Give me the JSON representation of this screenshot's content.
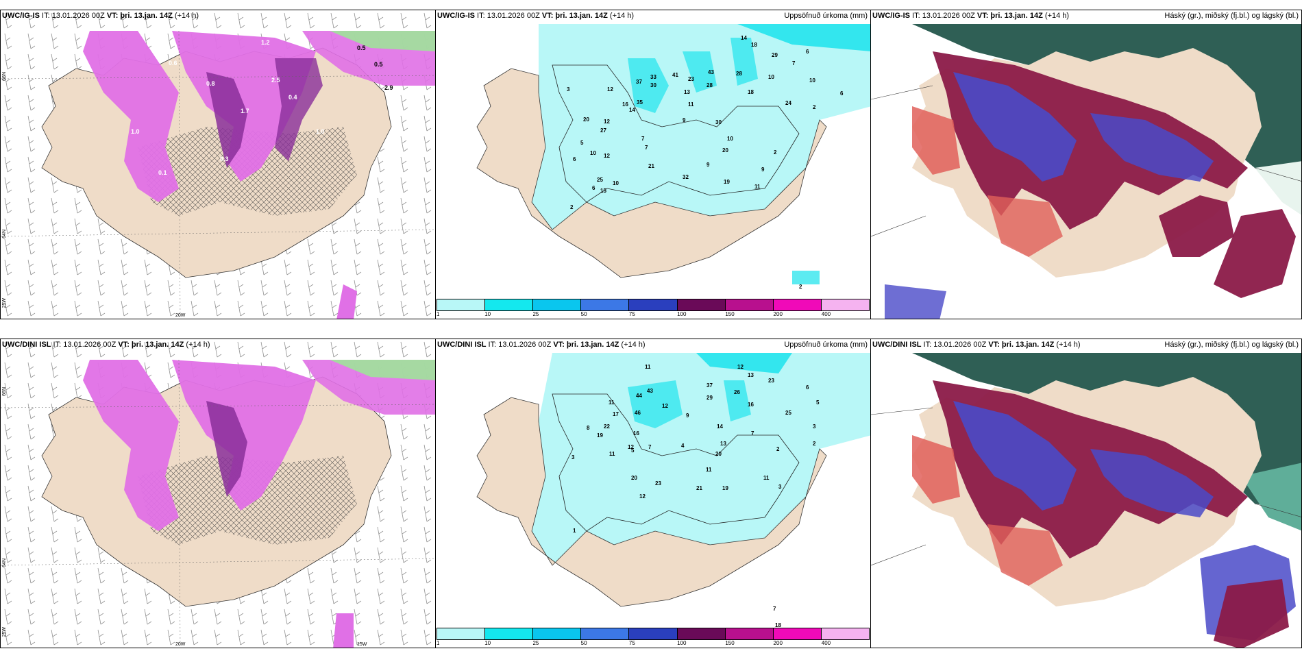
{
  "panels": [
    {
      "id": "top-left",
      "title_bold": "UWC/IG-IS",
      "title_rest": " IT: 13.01.2026 00Z ",
      "vt_bold": "VT: þri. 13.jan. 14Z",
      "lead": " (+14 h)",
      "right": "",
      "axis": {
        "lat66": "66N",
        "lat64": "64N",
        "lon25": "25W",
        "lon20": "20W"
      }
    },
    {
      "id": "top-mid",
      "title_bold": "UWC/IG-IS",
      "title_rest": " IT: 13.01.2026 00Z ",
      "vt_bold": "VT: þri. 13.jan. 14Z",
      "lead": " (+14 h)",
      "right": "Uppsöfnuð úrkoma (mm)",
      "colorbar": [
        "1",
        "10",
        "25",
        "50",
        "75",
        "100",
        "150",
        "200",
        "400"
      ]
    },
    {
      "id": "top-right",
      "title_bold": "UWC/IG-IS",
      "title_rest": " IT: 13.01.2026 00Z ",
      "vt_bold": "VT: þri. 13.jan. 14Z",
      "lead": " (+14 h)",
      "right": "Háský (gr.), miðský (fj.bl.) og lágský (bl.)"
    },
    {
      "id": "bottom-left",
      "title_bold": "UWC/DINI ISL",
      "title_rest": " IT: 13.01.2026 00Z ",
      "vt_bold": "VT: þri. 13.jan. 14Z",
      "lead": " (+14 h)",
      "right": "",
      "axis": {
        "lat66": "66N",
        "lat64": "64N",
        "lon25": "25W",
        "lon20": "20W",
        "lon15": "15W"
      }
    },
    {
      "id": "bottom-mid",
      "title_bold": "UWC/DINI ISL",
      "title_rest": " IT: 13.01.2026 00Z ",
      "vt_bold": "VT: þri. 13.jan. 14Z",
      "lead": " (+14 h)",
      "right": "Uppsöfnuð úrkoma (mm)",
      "colorbar": [
        "1",
        "10",
        "25",
        "50",
        "75",
        "100",
        "150",
        "200",
        "400"
      ]
    },
    {
      "id": "bottom-right",
      "title_bold": "UWC/DINI ISL",
      "title_rest": " IT: 13.01.2026 00Z ",
      "vt_bold": "VT: þri. 13.jan. 14Z",
      "lead": " (+14 h)",
      "right": "Háský (gr.), miðský (fj.bl.) og lágský (bl.)"
    }
  ],
  "colors": {
    "land": "#efdcc8",
    "land_dark": "#ddc9b0",
    "precip_light": "#b8f7f7",
    "precip_mid": "#33e6ee",
    "snow_pink": "#e070e6",
    "snow_purple": "#8a2f9a",
    "cloud_high": "#2f5f55",
    "cloud_mid": "#8b1a48",
    "cloud_low": "#4a4ac8",
    "cloud_red": "#e0605a",
    "colorbar": [
      "#b8f7f7",
      "#14e8ee",
      "#0ac6ee",
      "#3c78e6",
      "#2a3fbe",
      "#6a0a58",
      "#b8108e",
      "#f00ab8",
      "#f5b3f0"
    ]
  },
  "labels_top_left": [
    "1.2",
    "0.5",
    "0.5",
    "2.9",
    "0.6",
    "0.4",
    "1.0",
    "0.8",
    "1.7",
    "2.5",
    "0.3",
    "1.0",
    "0.1"
  ],
  "labels_top_mid": [
    "14",
    "18",
    "29",
    "6",
    "7",
    "10",
    "10",
    "6",
    "37",
    "33",
    "41",
    "23",
    "43",
    "28",
    "12",
    "30",
    "13",
    "28",
    "18",
    "24",
    "2",
    "16",
    "35",
    "14",
    "11",
    "20",
    "30",
    "12",
    "3",
    "7",
    "10",
    "6",
    "27",
    "9",
    "12",
    "5",
    "7",
    "10",
    "2",
    "20",
    "25",
    "6",
    "21",
    "9",
    "32",
    "19",
    "11",
    "10",
    "15",
    "2",
    "9",
    "2"
  ],
  "labels_bottom_mid": [
    "11",
    "12",
    "13",
    "6",
    "23",
    "37",
    "26",
    "5",
    "44",
    "43",
    "12",
    "29",
    "16",
    "25",
    "11",
    "17",
    "46",
    "9",
    "3",
    "8",
    "22",
    "16",
    "14",
    "7",
    "2",
    "3",
    "19",
    "12",
    "4",
    "13",
    "5",
    "7",
    "11",
    "20",
    "2",
    "20",
    "23",
    "11",
    "19",
    "3",
    "21",
    "12",
    "11",
    "7",
    "18",
    "1"
  ]
}
